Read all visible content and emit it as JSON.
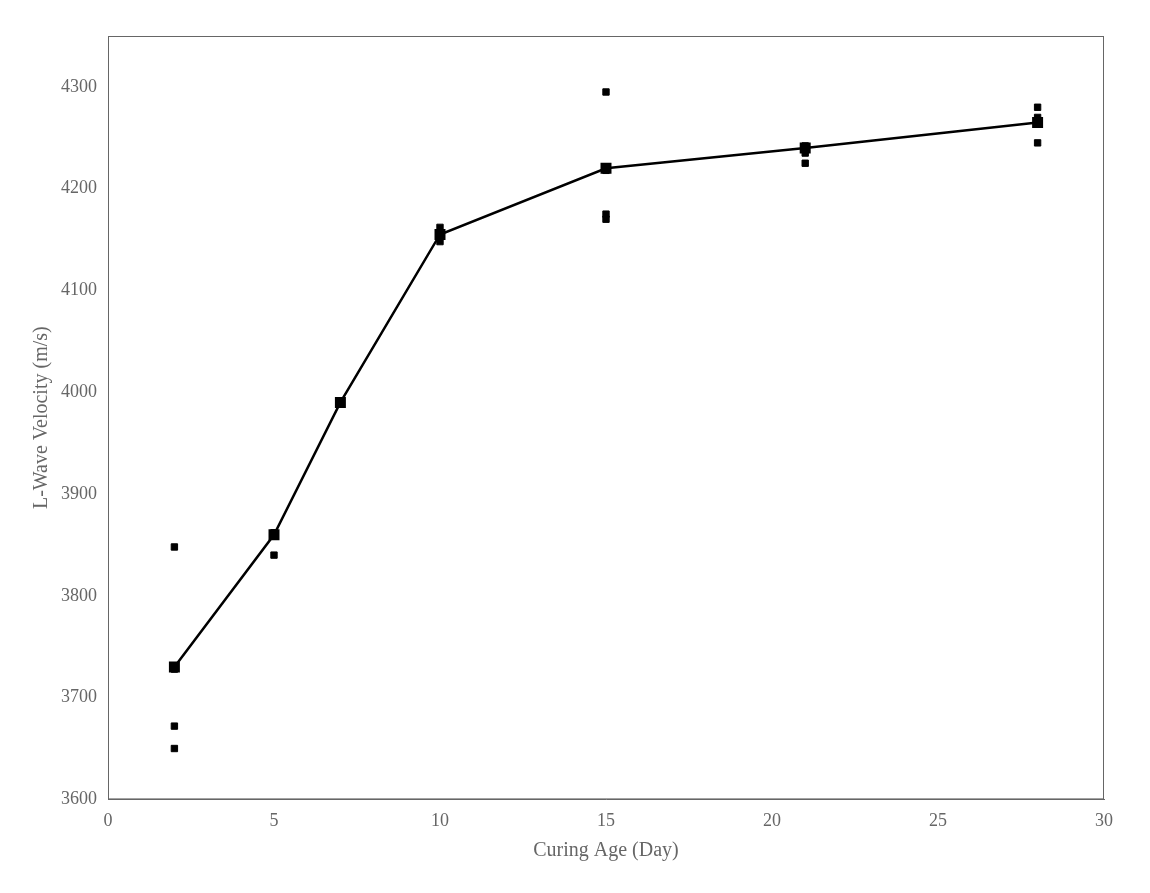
{
  "chart_data": {
    "type": "line",
    "xlabel": "Curing Age (Day)",
    "ylabel": "L-Wave Velocity (m/s)",
    "xlim": [
      0,
      30
    ],
    "ylim": [
      3600,
      4350
    ],
    "xticks": [
      0,
      5,
      10,
      15,
      20,
      25,
      30
    ],
    "yticks": [
      3600,
      3700,
      3800,
      3900,
      4000,
      4100,
      4200,
      4300
    ],
    "grid": false,
    "series": [
      {
        "type": "line",
        "marker": "square",
        "line_style": "solid",
        "color": "#000000",
        "x": [
          2,
          5,
          7,
          10,
          15,
          21,
          28
        ],
        "values": [
          3730,
          3860,
          3990,
          4155,
          4220,
          4240,
          4265
        ]
      },
      {
        "type": "scatter",
        "marker": "square",
        "color": "#000000",
        "x": [
          2,
          2,
          2,
          2,
          5,
          5,
          10,
          10,
          15,
          15,
          15,
          15,
          21,
          21,
          21,
          28,
          28,
          28
        ],
        "values": [
          3728,
          3848,
          3672,
          3650,
          3862,
          3840,
          4162,
          4148,
          4295,
          4218,
          4175,
          4170,
          4242,
          4235,
          4225,
          4280,
          4270,
          4245
        ]
      }
    ]
  }
}
